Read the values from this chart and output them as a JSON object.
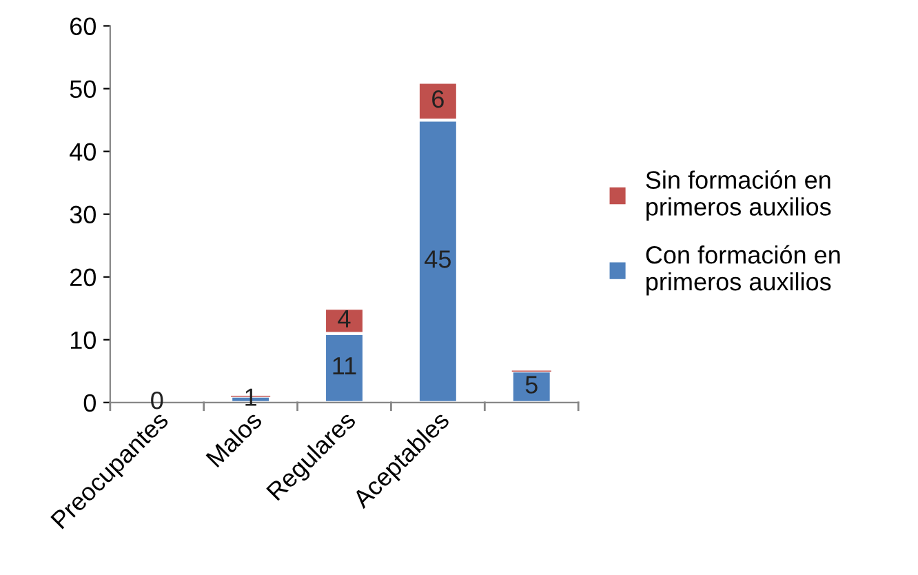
{
  "chart_data": {
    "type": "bar",
    "stacked": true,
    "categories": [
      "Preocupantes",
      "Malos",
      "Regulares",
      "Aceptables",
      null
    ],
    "series": [
      {
        "name": "Con formación en primeros auxilios",
        "color": "#4f81bd",
        "values": [
          0,
          1,
          11,
          45,
          5
        ],
        "value_labels": [
          "0",
          "1",
          "11",
          "45",
          "5"
        ]
      },
      {
        "name": "Sin formación en primeros auxilios",
        "color": "#c0504d",
        "values": [
          0,
          0,
          4,
          6,
          0
        ],
        "value_labels": [
          null,
          null,
          "4",
          "6",
          null
        ]
      }
    ],
    "ylim": [
      0,
      60
    ],
    "yticks": [
      0,
      10,
      20,
      30,
      40,
      50,
      60
    ],
    "grid": false,
    "legend": "right"
  }
}
